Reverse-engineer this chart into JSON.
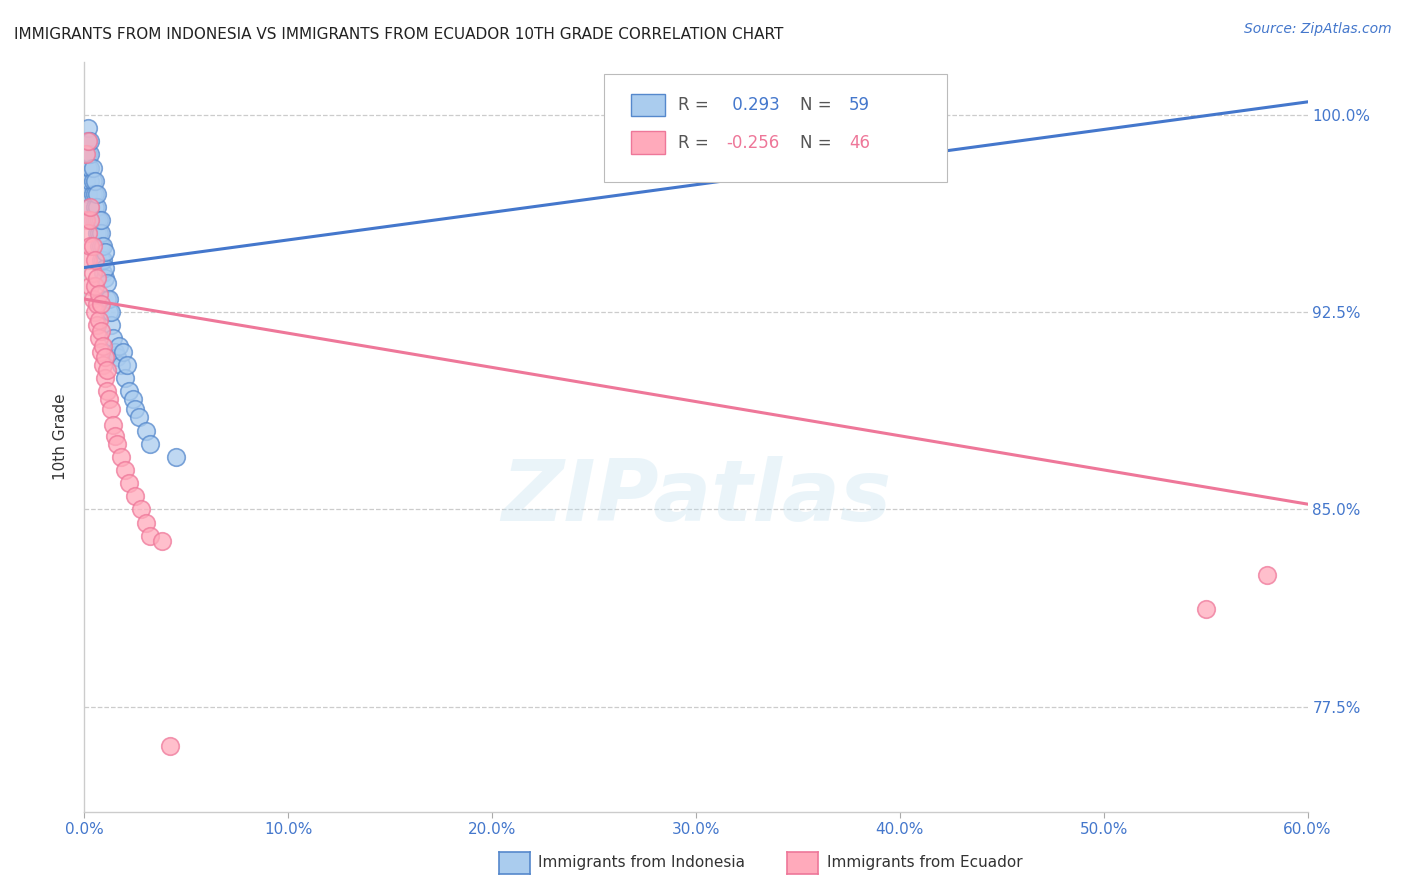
{
  "title": "IMMIGRANTS FROM INDONESIA VS IMMIGRANTS FROM ECUADOR 10TH GRADE CORRELATION CHART",
  "source": "Source: ZipAtlas.com",
  "ylabel": "10th Grade",
  "ytick_vals": [
    0.775,
    0.85,
    0.925,
    1.0
  ],
  "ytick_labels": [
    "77.5%",
    "85.0%",
    "92.5%",
    "100.0%"
  ],
  "xmin": 0.0,
  "xmax": 0.6,
  "ymin": 0.735,
  "ymax": 1.02,
  "blue_R": 0.293,
  "blue_N": 59,
  "pink_R": -0.256,
  "pink_N": 46,
  "legend_label_blue": "Immigrants from Indonesia",
  "legend_label_pink": "Immigrants from Ecuador",
  "watermark": "ZIPatlas",
  "blue_fill": "#AACCEE",
  "blue_edge": "#5588CC",
  "pink_fill": "#FFAABB",
  "pink_edge": "#EE7799",
  "blue_line": "#4477CC",
  "pink_line": "#EE7799",
  "blue_scatter_x": [
    0.001,
    0.001,
    0.001,
    0.002,
    0.002,
    0.002,
    0.002,
    0.002,
    0.003,
    0.003,
    0.003,
    0.003,
    0.003,
    0.004,
    0.004,
    0.004,
    0.004,
    0.005,
    0.005,
    0.005,
    0.005,
    0.006,
    0.006,
    0.006,
    0.006,
    0.007,
    0.007,
    0.007,
    0.008,
    0.008,
    0.008,
    0.008,
    0.009,
    0.009,
    0.009,
    0.01,
    0.01,
    0.01,
    0.011,
    0.011,
    0.012,
    0.012,
    0.013,
    0.013,
    0.014,
    0.015,
    0.016,
    0.017,
    0.018,
    0.019,
    0.02,
    0.021,
    0.022,
    0.024,
    0.025,
    0.027,
    0.03,
    0.032,
    0.045
  ],
  "blue_scatter_y": [
    0.975,
    0.985,
    0.99,
    0.97,
    0.98,
    0.985,
    0.99,
    0.995,
    0.965,
    0.975,
    0.98,
    0.985,
    0.99,
    0.96,
    0.97,
    0.975,
    0.98,
    0.96,
    0.965,
    0.97,
    0.975,
    0.955,
    0.96,
    0.965,
    0.97,
    0.95,
    0.955,
    0.96,
    0.945,
    0.95,
    0.955,
    0.96,
    0.94,
    0.945,
    0.95,
    0.938,
    0.942,
    0.948,
    0.93,
    0.936,
    0.925,
    0.93,
    0.92,
    0.925,
    0.915,
    0.91,
    0.908,
    0.912,
    0.905,
    0.91,
    0.9,
    0.905,
    0.895,
    0.892,
    0.888,
    0.885,
    0.88,
    0.875,
    0.87
  ],
  "pink_scatter_x": [
    0.001,
    0.001,
    0.002,
    0.002,
    0.002,
    0.003,
    0.003,
    0.003,
    0.003,
    0.004,
    0.004,
    0.004,
    0.005,
    0.005,
    0.005,
    0.006,
    0.006,
    0.006,
    0.007,
    0.007,
    0.007,
    0.008,
    0.008,
    0.008,
    0.009,
    0.009,
    0.01,
    0.01,
    0.011,
    0.011,
    0.012,
    0.013,
    0.014,
    0.015,
    0.016,
    0.018,
    0.02,
    0.022,
    0.025,
    0.028,
    0.03,
    0.032,
    0.038,
    0.55,
    0.58,
    0.042
  ],
  "pink_scatter_y": [
    0.96,
    0.985,
    0.945,
    0.955,
    0.99,
    0.935,
    0.95,
    0.96,
    0.965,
    0.93,
    0.94,
    0.95,
    0.925,
    0.935,
    0.945,
    0.92,
    0.928,
    0.938,
    0.915,
    0.922,
    0.932,
    0.91,
    0.918,
    0.928,
    0.905,
    0.912,
    0.9,
    0.908,
    0.895,
    0.903,
    0.892,
    0.888,
    0.882,
    0.878,
    0.875,
    0.87,
    0.865,
    0.86,
    0.855,
    0.85,
    0.845,
    0.84,
    0.838,
    0.812,
    0.825,
    0.76
  ],
  "blue_trend_x0": 0.0,
  "blue_trend_x1": 0.6,
  "blue_trend_y0": 0.942,
  "blue_trend_y1": 1.005,
  "pink_trend_x0": 0.0,
  "pink_trend_x1": 0.6,
  "pink_trend_y0": 0.93,
  "pink_trend_y1": 0.852
}
